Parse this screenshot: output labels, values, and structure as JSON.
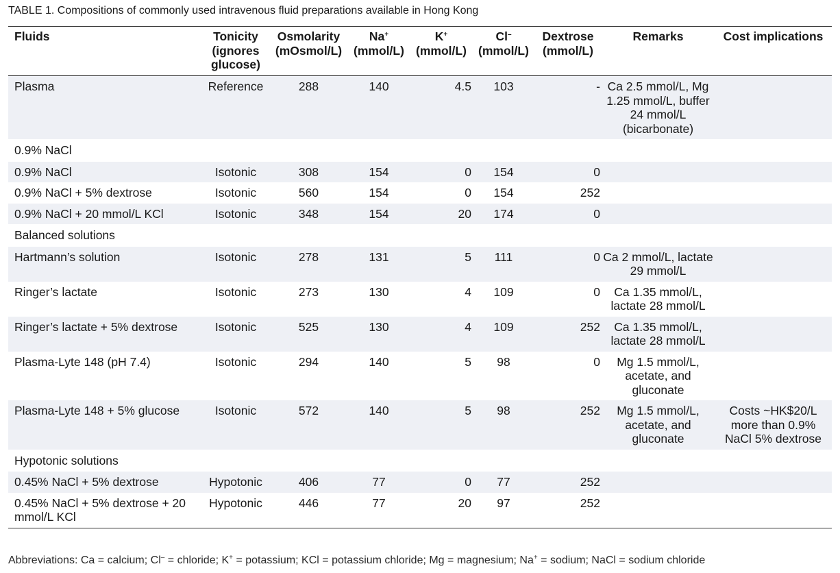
{
  "caption": {
    "label": "TABLE 1.",
    "text": "Compositions of commonly used intravenous fluid preparations available in Hong Kong"
  },
  "headers": [
    "Fluids",
    "Tonicity (ignores glucose)",
    "Osmolarity (mOsmol/L)",
    "Na+ (mmol/L)",
    "K+ (mmol/L)",
    "Cl– (mmol/L)",
    "Dextrose (mmol/L)",
    "Remarks",
    "Cost implications"
  ],
  "rows": [
    {
      "kind": "data",
      "shade": true,
      "fluid": "Plasma",
      "tonicity": "Reference",
      "osmolarity": "288",
      "na": "140",
      "k": "4.5",
      "cl": "103",
      "dextrose": "-",
      "remarks": "Ca 2.5 mmol/L, Mg 1.25 mmol/L, buffer 24 mmol/L (bicarbonate)",
      "cost": ""
    },
    {
      "kind": "section",
      "shade": false,
      "label": "0.9% NaCl"
    },
    {
      "kind": "data",
      "shade": true,
      "fluid": "0.9% NaCl",
      "tonicity": "Isotonic",
      "osmolarity": "308",
      "na": "154",
      "k": "0",
      "cl": "154",
      "dextrose": "0",
      "remarks": "",
      "cost": ""
    },
    {
      "kind": "data",
      "shade": false,
      "fluid": "0.9% NaCl + 5% dextrose",
      "tonicity": "Isotonic",
      "osmolarity": "560",
      "na": "154",
      "k": "0",
      "cl": "154",
      "dextrose": "252",
      "remarks": "",
      "cost": ""
    },
    {
      "kind": "data",
      "shade": true,
      "fluid": "0.9% NaCl + 20 mmol/L KCl",
      "tonicity": "Isotonic",
      "osmolarity": "348",
      "na": "154",
      "k": "20",
      "cl": "174",
      "dextrose": "0",
      "remarks": "",
      "cost": ""
    },
    {
      "kind": "section",
      "shade": false,
      "label": "Balanced solutions"
    },
    {
      "kind": "data",
      "shade": true,
      "fluid": "Hartmann’s solution",
      "tonicity": "Isotonic",
      "osmolarity": "278",
      "na": "131",
      "k": "5",
      "cl": "111",
      "dextrose": "0",
      "remarks": "Ca 2 mmol/L, lactate 29 mmol/L",
      "cost": ""
    },
    {
      "kind": "data",
      "shade": false,
      "fluid": "Ringer’s lactate",
      "tonicity": "Isotonic",
      "osmolarity": "273",
      "na": "130",
      "k": "4",
      "cl": "109",
      "dextrose": "0",
      "remarks": "Ca 1.35 mmol/L, lactate 28 mmol/L",
      "cost": ""
    },
    {
      "kind": "data",
      "shade": true,
      "fluid": "Ringer’s lactate + 5% dextrose",
      "tonicity": "Isotonic",
      "osmolarity": "525",
      "na": "130",
      "k": "4",
      "cl": "109",
      "dextrose": "252",
      "remarks": "Ca 1.35 mmol/L, lactate 28 mmol/L",
      "cost": ""
    },
    {
      "kind": "data",
      "shade": false,
      "fluid": "Plasma-Lyte 148 (pH 7.4)",
      "tonicity": "Isotonic",
      "osmolarity": "294",
      "na": "140",
      "k": "5",
      "cl": "98",
      "dextrose": "0",
      "remarks": "Mg 1.5 mmol/L, acetate, and gluconate",
      "cost": ""
    },
    {
      "kind": "data",
      "shade": true,
      "fluid": "Plasma-Lyte 148 + 5% glucose",
      "tonicity": "Isotonic",
      "osmolarity": "572",
      "na": "140",
      "k": "5",
      "cl": "98",
      "dextrose": "252",
      "remarks": "Mg 1.5 mmol/L, acetate, and gluconate",
      "cost": "Costs ~HK$20/L more than 0.9% NaCl 5% dextrose"
    },
    {
      "kind": "section",
      "shade": false,
      "label": "Hypotonic solutions"
    },
    {
      "kind": "data",
      "shade": true,
      "fluid": "0.45% NaCl + 5% dextrose",
      "tonicity": "Hypotonic",
      "osmolarity": "406",
      "na": "77",
      "k": "0",
      "cl": "77",
      "dextrose": "252",
      "remarks": "",
      "cost": ""
    },
    {
      "kind": "data",
      "shade": false,
      "fluid": "0.45% NaCl + 5% dextrose + 20 mmol/L KCl",
      "tonicity": "Hypotonic",
      "osmolarity": "446",
      "na": "77",
      "k": "20",
      "cl": "97",
      "dextrose": "252",
      "remarks": "",
      "cost": ""
    }
  ],
  "footnote": "Abbreviations: Ca = calcium; Cl– = chloride; K+ = potassium; KCl = potassium chloride; Mg = magnesium; Na+ = sodium; NaCl = sodium chloride",
  "colors": {
    "shade": "#eef0f5",
    "rule": "#333333",
    "text": "#1a1a1a"
  }
}
